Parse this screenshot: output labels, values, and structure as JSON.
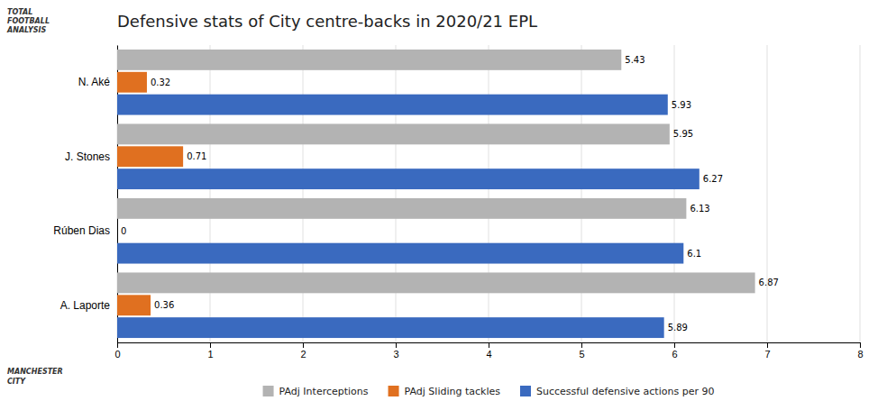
{
  "chart_data": {
    "type": "bar",
    "orientation": "horizontal",
    "title": "Defensive stats of City centre-backs in 2020/21 EPL",
    "categories": [
      "A. Laporte",
      "Rúben Dias",
      "J. Stones",
      "N. Aké"
    ],
    "series": [
      {
        "name": "PAdj Interceptions",
        "color": "#b3b3b3",
        "values": [
          6.87,
          6.13,
          5.95,
          5.43
        ]
      },
      {
        "name": "PAdj Sliding tackles",
        "color": "#e07020",
        "values": [
          0.36,
          0,
          0.71,
          0.32
        ]
      },
      {
        "name": "Successful defensive actions per 90",
        "color": "#3a6abf",
        "values": [
          5.89,
          6.1,
          6.27,
          5.93
        ]
      }
    ],
    "xlim": [
      0,
      8
    ],
    "xticks": [
      0,
      1,
      2,
      3,
      4,
      5,
      6,
      7,
      8
    ],
    "grid": true,
    "data_labels": true,
    "annotations": [
      "TOTAL",
      "FOOTBALL",
      "ANALYSIS",
      "MANCHESTER",
      "CITY"
    ]
  }
}
